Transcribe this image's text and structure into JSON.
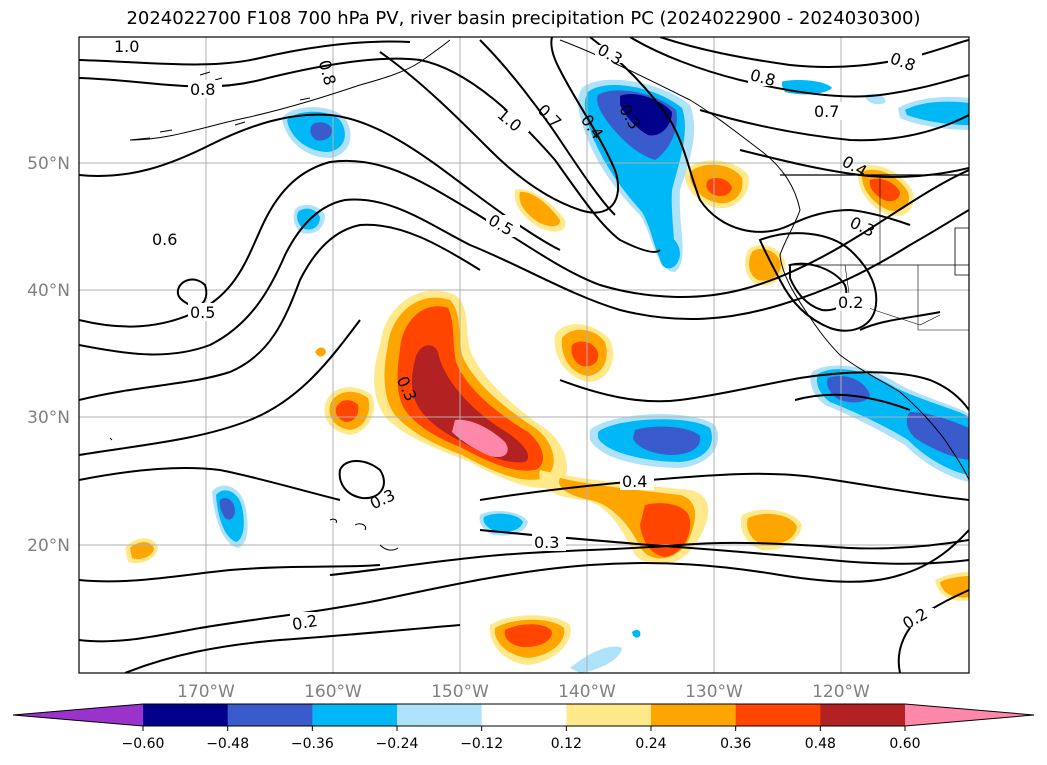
{
  "title": "2024022700 F108 700 hPa PV, river basin precipitation PC (2024022900 - 2024030300)",
  "map": {
    "lon_labels": [
      "170°W",
      "160°W",
      "150°W",
      "140°W",
      "130°W",
      "120°W"
    ],
    "lat_labels": [
      "50°N",
      "40°N",
      "30°N",
      "20°N"
    ],
    "contour_labels": [
      "1.0",
      "0.8",
      "0.8",
      "0.3",
      "0.4",
      "0.3",
      "1.0",
      "0.7",
      "0.8",
      "0.7",
      "0.8",
      "0.4",
      "0.3",
      "0.6",
      "0.5",
      "0.5",
      "0.2",
      "0.3",
      "0.3",
      "0.4",
      "0.3",
      "0.2",
      "0.2"
    ],
    "fill_colors": {
      "neg_extreme": "#9a33cc",
      "neg_060": "#00008b",
      "neg_048": "#3a5bcc",
      "neg_036": "#00b8f5",
      "neg_024": "#aee1fa",
      "neutral": "#ffffff",
      "pos_012": "#ffe98a",
      "pos_024": "#ffa500",
      "pos_036": "#ff4500",
      "pos_048": "#b22222",
      "pos_060": "#ff88aa"
    }
  },
  "colorbar": {
    "ticks": [
      "−0.60",
      "−0.48",
      "−0.36",
      "−0.24",
      "−0.12",
      "0.12",
      "0.24",
      "0.36",
      "0.48",
      "0.60"
    ],
    "colors": [
      "#9a33cc",
      "#00008b",
      "#3a5bcc",
      "#00b8f5",
      "#aee1fa",
      "#ffffff",
      "#ffe98a",
      "#ffa500",
      "#ff4500",
      "#b22222",
      "#ff88aa"
    ]
  }
}
